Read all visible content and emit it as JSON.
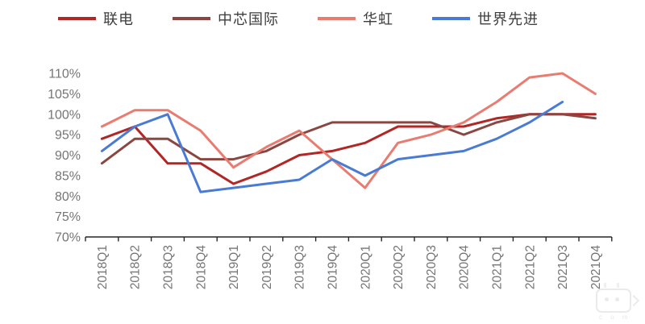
{
  "chart_data": {
    "type": "line",
    "title": "",
    "xlabel": "",
    "ylabel": "",
    "categories": [
      "2018Q1",
      "2018Q2",
      "2018Q3",
      "2018Q4",
      "2019Q1",
      "2019Q2",
      "2019Q3",
      "2019Q4",
      "2020Q1",
      "2020Q2",
      "2020Q3",
      "2020Q4",
      "2021Q1",
      "2021Q2",
      "2021Q3",
      "2021Q4"
    ],
    "series": [
      {
        "name": "联电",
        "color": "#b02726",
        "values": [
          94,
          97,
          88,
          88,
          83,
          86,
          90,
          91,
          93,
          97,
          97,
          97,
          99,
          100,
          100,
          100
        ]
      },
      {
        "name": "中芯国际",
        "color": "#8a4742",
        "values": [
          88,
          94,
          94,
          89,
          89,
          91,
          95,
          98,
          98,
          98,
          98,
          95,
          98,
          100,
          100,
          99
        ]
      },
      {
        "name": "华虹",
        "color": "#e97c71",
        "values": [
          97,
          101,
          101,
          96,
          87,
          92,
          96,
          89,
          82,
          93,
          95,
          98,
          103,
          109,
          110,
          105
        ]
      },
      {
        "name": "世界先进",
        "color": "#4a7bd4",
        "values": [
          91,
          97,
          100,
          81,
          82,
          83,
          84,
          89,
          85,
          89,
          90,
          91,
          94,
          98,
          103,
          null
        ]
      }
    ],
    "ylim": [
      70,
      110
    ],
    "ytick_step": 5,
    "ytick_labels": [
      "110%",
      "105%",
      "100%",
      "95%",
      "90%",
      "85%",
      "80%",
      "75%",
      "70%"
    ],
    "unit": "percent",
    "grid": false,
    "legend_position": "top"
  },
  "axis_colors": {
    "tick_label": "#757575",
    "axis_line": "#262626"
  },
  "watermark": {
    "text": "c o m"
  }
}
